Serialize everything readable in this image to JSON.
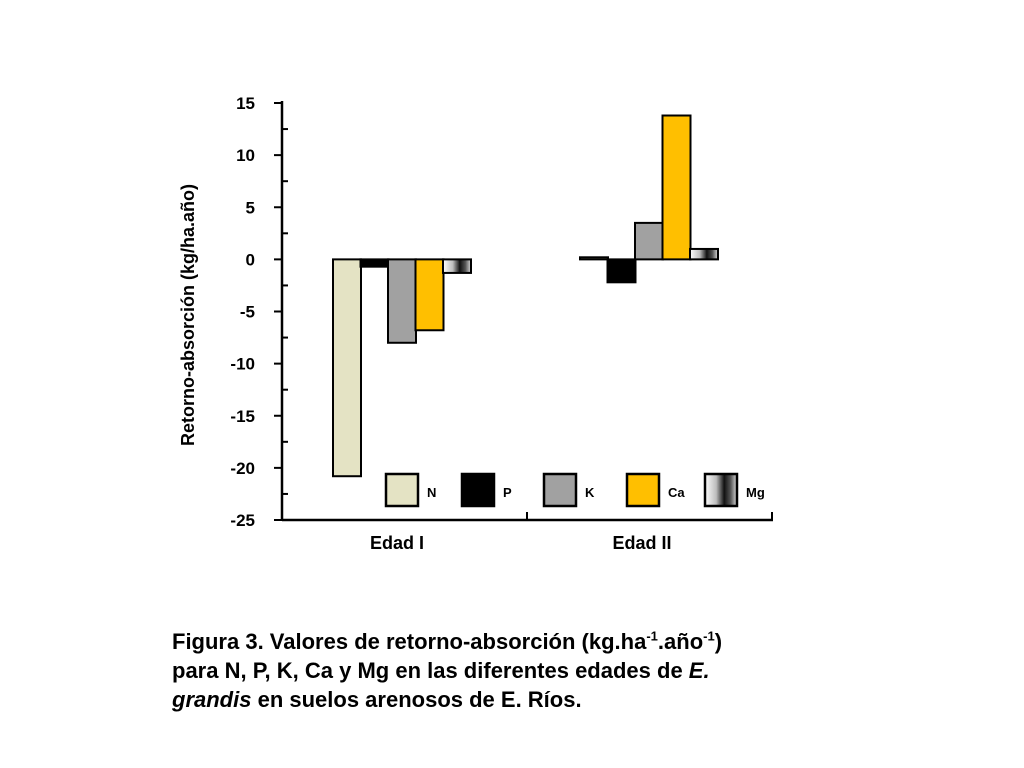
{
  "chart_data": {
    "type": "bar",
    "categories": [
      "Edad I",
      "Edad II"
    ],
    "series": [
      {
        "name": "N",
        "values": [
          -20.8,
          0.2
        ]
      },
      {
        "name": "P",
        "values": [
          -0.7,
          -2.2
        ]
      },
      {
        "name": "K",
        "values": [
          -8.0,
          3.5
        ]
      },
      {
        "name": "Ca",
        "values": [
          -6.8,
          13.8
        ]
      },
      {
        "name": "Mg",
        "values": [
          -1.3,
          1.0
        ]
      }
    ],
    "ylabel": "Retorno-absorción (kg/ha.año)",
    "ylim": [
      -25,
      15
    ],
    "yticks": [
      "15",
      "10",
      "5",
      "0",
      "-5",
      "-10",
      "-15",
      "-20",
      "-25"
    ],
    "ytick_values": [
      15,
      10,
      5,
      0,
      -5,
      -10,
      -15,
      -20,
      -25
    ],
    "legend_placement": "bottom-right",
    "grid": false,
    "colors": {
      "N": "#e4e3c4",
      "P": "#000000",
      "K": "#a1a1a1",
      "Ca": "#ffbf00",
      "Mg": "gradient-gray"
    }
  },
  "caption": {
    "prefix": "Figura  3.   Valores de retorno-absorción  (kg.ha",
    "sup1": "-1",
    "mid1": ".año",
    "sup2": "-1",
    "mid2": ")",
    "line2": "para N, P, K, Ca y Mg en las diferentes edades de ",
    "italic1": "E.",
    "italic2": "grandis",
    "suffix": " en suelos arenosos de E. Ríos."
  }
}
